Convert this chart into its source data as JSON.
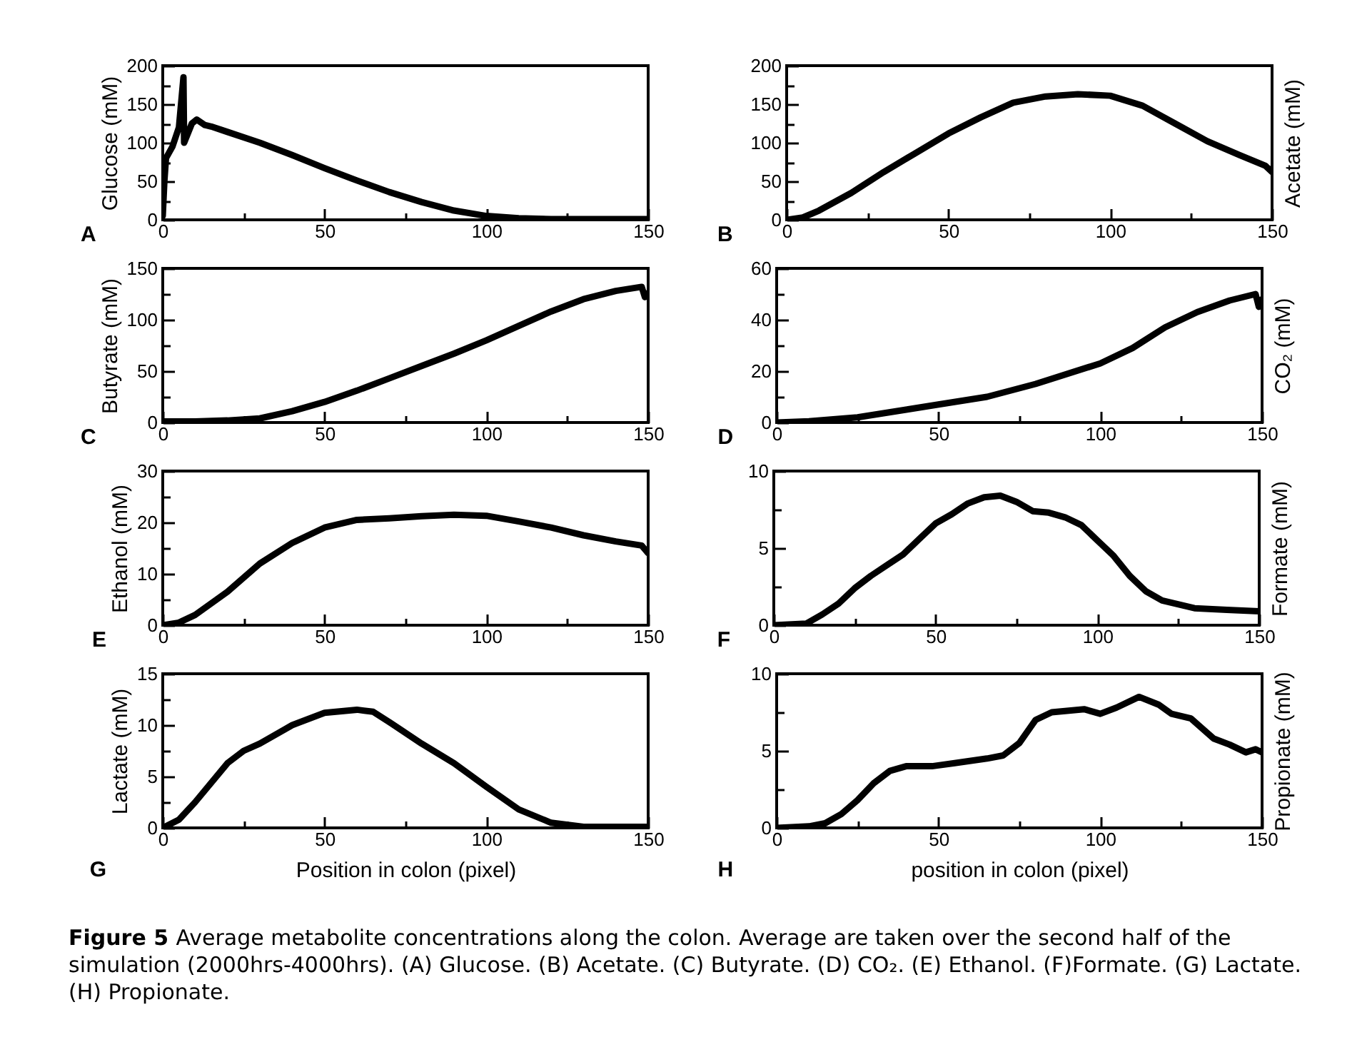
{
  "chart_data": [
    {
      "type": "line",
      "title": "A",
      "ylabel": "Glucose (mM)",
      "xlim": [
        0,
        150
      ],
      "ylim": [
        0,
        200
      ],
      "xticks": [
        0,
        {
          "value": 25,
          "label": null
        },
        50,
        {
          "value": 75,
          "label": null
        },
        100,
        {
          "value": 125,
          "label": null
        },
        150
      ],
      "yticks": [
        0,
        {
          "value": 25,
          "label": null
        },
        50,
        {
          "value": 75,
          "label": null
        },
        100,
        {
          "value": 125,
          "label": null
        },
        150,
        {
          "value": 175,
          "label": null
        },
        200
      ],
      "x": [
        0,
        0.5,
        1,
        3,
        5,
        6.4,
        6.6,
        9,
        10.5,
        13,
        15,
        20,
        30,
        40,
        50,
        60,
        70,
        80,
        90,
        100,
        110,
        120,
        150
      ],
      "series": [
        {
          "color": "#000000",
          "values": [
            5,
            50,
            80,
            95,
            120,
            185,
            100,
            125,
            130,
            123,
            121,
            114,
            100,
            84,
            67,
            51,
            36,
            23,
            12,
            5,
            2,
            1,
            1
          ]
        }
      ]
    },
    {
      "type": "line",
      "title": "B",
      "ylabel": "Acetate (mM)",
      "xlim": [
        0,
        150
      ],
      "ylim": [
        0,
        200
      ],
      "xticks": [
        0,
        {
          "value": 25,
          "label": null
        },
        50,
        {
          "value": 75,
          "label": null
        },
        100,
        {
          "value": 125,
          "label": null
        },
        150
      ],
      "yticks": [
        0,
        {
          "value": 25,
          "label": null
        },
        50,
        {
          "value": 75,
          "label": null
        },
        100,
        {
          "value": 125,
          "label": null
        },
        150,
        {
          "value": 175,
          "label": null
        },
        200
      ],
      "x": [
        0,
        5,
        10,
        20,
        30,
        40,
        50,
        60,
        70,
        80,
        90,
        100,
        110,
        120,
        130,
        140,
        148,
        150
      ],
      "series": [
        {
          "color": "#000000",
          "values": [
            0,
            3,
            12,
            35,
            62,
            87,
            112,
            133,
            152,
            160,
            163,
            161,
            148,
            125,
            102,
            84,
            70,
            62
          ]
        }
      ]
    },
    {
      "type": "line",
      "title": "C",
      "ylabel": "Butyrate (mM)",
      "xlim": [
        0,
        150
      ],
      "ylim": [
        0,
        150
      ],
      "xticks": [
        0,
        {
          "value": 25,
          "label": null
        },
        50,
        {
          "value": 75,
          "label": null
        },
        100,
        {
          "value": 125,
          "label": null
        },
        150
      ],
      "yticks": [
        0,
        {
          "value": 25,
          "label": null
        },
        50,
        {
          "value": 75,
          "label": null
        },
        100,
        {
          "value": 125,
          "label": null
        },
        150
      ],
      "x": [
        0,
        10,
        20,
        30,
        40,
        50,
        60,
        70,
        80,
        90,
        100,
        110,
        120,
        130,
        140,
        148,
        149,
        150
      ],
      "series": [
        {
          "color": "#000000",
          "values": [
            1,
            1,
            2,
            4,
            11,
            20,
            31,
            43,
            55,
            67,
            80,
            94,
            108,
            120,
            128,
            132,
            122,
            126
          ]
        }
      ]
    },
    {
      "type": "line",
      "title": "D",
      "ylabel": "CO₂ (mM)",
      "xlim": [
        0,
        150
      ],
      "ylim": [
        0,
        60
      ],
      "xticks": [
        0,
        {
          "value": 25,
          "label": null
        },
        50,
        {
          "value": 75,
          "label": null
        },
        100,
        {
          "value": 125,
          "label": null
        },
        150
      ],
      "yticks": [
        0,
        {
          "value": 10,
          "label": null
        },
        20,
        {
          "value": 30,
          "label": null
        },
        40,
        {
          "value": 50,
          "label": null
        },
        60
      ],
      "x": [
        0,
        10,
        25,
        40,
        50,
        65,
        80,
        100,
        110,
        120,
        130,
        140,
        148,
        149,
        150
      ],
      "series": [
        {
          "color": "#000000",
          "values": [
            0,
            0.5,
            2,
            5,
            7,
            10,
            15,
            23,
            29,
            37,
            43,
            47.5,
            50,
            45,
            48
          ]
        }
      ]
    },
    {
      "type": "line",
      "title": "E",
      "ylabel": "Ethanol (mM)",
      "xlim": [
        0,
        150
      ],
      "ylim": [
        0,
        30
      ],
      "xticks": [
        0,
        {
          "value": 25,
          "label": null
        },
        50,
        {
          "value": 75,
          "label": null
        },
        100,
        {
          "value": 125,
          "label": null
        },
        150
      ],
      "yticks": [
        0,
        {
          "value": 5,
          "label": null
        },
        10,
        {
          "value": 15,
          "label": null
        },
        20,
        {
          "value": 25,
          "label": null
        },
        30
      ],
      "x": [
        0,
        5,
        10,
        20,
        30,
        40,
        50,
        60,
        70,
        80,
        90,
        100,
        110,
        120,
        130,
        140,
        148,
        150
      ],
      "series": [
        {
          "color": "#000000",
          "values": [
            0,
            0.5,
            2,
            6.5,
            12,
            16,
            19,
            20.5,
            20.8,
            21.2,
            21.5,
            21.3,
            20.2,
            19,
            17.5,
            16.3,
            15.5,
            14
          ]
        }
      ]
    },
    {
      "type": "line",
      "title": "F",
      "ylabel": "Formate (mM)",
      "xlim": [
        0,
        150
      ],
      "ylim": [
        0,
        10
      ],
      "xticks": [
        0,
        {
          "value": 25,
          "label": null
        },
        50,
        {
          "value": 75,
          "label": null
        },
        100,
        {
          "value": 125,
          "label": null
        },
        150
      ],
      "yticks": [
        0,
        {
          "value": 2.5,
          "label": null
        },
        5,
        {
          "value": 7.5,
          "label": null
        },
        10
      ],
      "x": [
        0,
        10,
        15,
        20,
        25,
        30,
        35,
        40,
        45,
        50,
        55,
        60,
        65,
        70,
        75,
        80,
        85,
        90,
        95,
        100,
        105,
        110,
        115,
        120,
        130,
        140,
        150
      ],
      "series": [
        {
          "color": "#000000",
          "values": [
            0,
            0.1,
            0.7,
            1.4,
            2.4,
            3.2,
            3.9,
            4.6,
            5.6,
            6.6,
            7.2,
            7.9,
            8.3,
            8.4,
            8,
            7.4,
            7.3,
            7,
            6.5,
            5.5,
            4.5,
            3.2,
            2.2,
            1.6,
            1.1,
            1,
            0.9
          ]
        }
      ]
    },
    {
      "type": "line",
      "title": "G",
      "ylabel": "Lactate (mM)",
      "xlabel": "Position in colon (pixel)",
      "xlim": [
        0,
        150
      ],
      "ylim": [
        0,
        15
      ],
      "xticks": [
        0,
        {
          "value": 25,
          "label": null
        },
        50,
        {
          "value": 75,
          "label": null
        },
        100,
        {
          "value": 125,
          "label": null
        },
        150
      ],
      "yticks": [
        0,
        {
          "value": 2.5,
          "label": null
        },
        5,
        {
          "value": 7.5,
          "label": null
        },
        10,
        {
          "value": 12.5,
          "label": null
        },
        15
      ],
      "x": [
        0,
        5,
        10,
        20,
        25,
        30,
        40,
        50,
        60,
        65,
        70,
        80,
        90,
        100,
        110,
        120,
        130,
        150
      ],
      "series": [
        {
          "color": "#000000",
          "values": [
            0,
            0.8,
            2.5,
            6.3,
            7.5,
            8.2,
            10,
            11.2,
            11.5,
            11.3,
            10.3,
            8.2,
            6.3,
            4,
            1.8,
            0.5,
            0.1,
            0.1
          ]
        }
      ]
    },
    {
      "type": "line",
      "title": "H",
      "ylabel": "Propionate (mM)",
      "xlabel": "position in colon (pixel)",
      "xlim": [
        0,
        150
      ],
      "ylim": [
        0,
        10
      ],
      "xticks": [
        0,
        {
          "value": 25,
          "label": null
        },
        50,
        {
          "value": 75,
          "label": null
        },
        100,
        {
          "value": 125,
          "label": null
        },
        150
      ],
      "yticks": [
        0,
        {
          "value": 2.5,
          "label": null
        },
        5,
        {
          "value": 7.5,
          "label": null
        },
        10
      ],
      "x": [
        0,
        10,
        15,
        20,
        25,
        30,
        35,
        40,
        48,
        55,
        65,
        70,
        75,
        80,
        85,
        95,
        100,
        105,
        112,
        118,
        122,
        128,
        135,
        140,
        145,
        148,
        150
      ],
      "series": [
        {
          "color": "#000000",
          "values": [
            0,
            0.1,
            0.3,
            0.9,
            1.8,
            2.9,
            3.7,
            4,
            4,
            4.2,
            4.5,
            4.7,
            5.5,
            7,
            7.5,
            7.7,
            7.4,
            7.8,
            8.5,
            8,
            7.4,
            7.1,
            5.8,
            5.4,
            4.9,
            5.1,
            4.9
          ]
        }
      ],
      "annotations": [
        "Figure 5",
        "Average metabolite concentrations along the colon. Average are taken over the second half of the simulation (2000hrs-4000hrs). (A) Glucose. (B) Acetate. (C) Butyrate. (D) CO₂. (E) Ethanol. (F)Formate. (G) Lactate. (H) Propionate."
      ]
    }
  ]
}
